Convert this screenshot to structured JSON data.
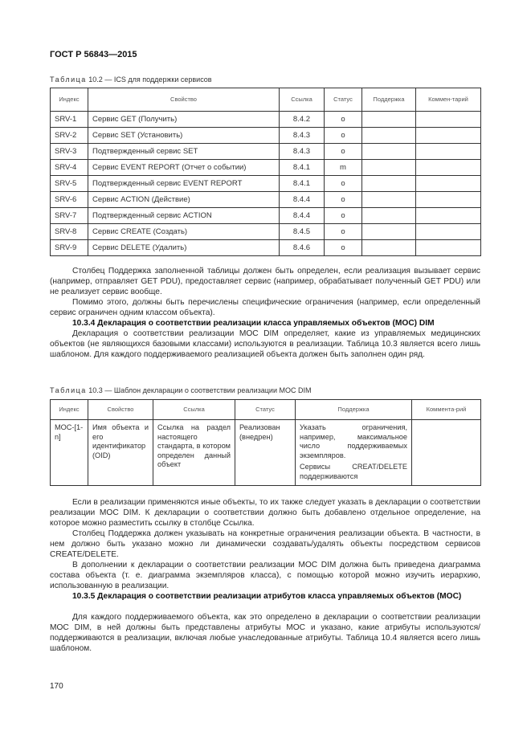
{
  "header": {
    "doc_id": "ГОСТ Р 56843—2015"
  },
  "table1": {
    "caption_prefix": "Таблица",
    "caption_rest": " 10.2 — ICS для поддержки сервисов",
    "columns": [
      "Индекс",
      "Свойство",
      "Ссылка",
      "Статус",
      "Поддержка",
      "Коммен-тарий"
    ],
    "rows": [
      [
        "SRV-1",
        "Сервис GET (Получить)",
        "8.4.2",
        "o",
        "",
        ""
      ],
      [
        "SRV-2",
        "Сервис SET (Установить)",
        "8.4.3",
        "o",
        "",
        ""
      ],
      [
        "SRV-3",
        "Подтвержденный сервис SET",
        "8.4.3",
        "o",
        "",
        ""
      ],
      [
        "SRV-4",
        "Сервис EVENT REPORT (Отчет о событии)",
        "8.4.1",
        "m",
        "",
        ""
      ],
      [
        "SRV-5",
        "Подтвержденный сервис EVENT REPORT",
        "8.4.1",
        "o",
        "",
        ""
      ],
      [
        "SRV-6",
        "Сервис ACTION (Действие)",
        "8.4.4",
        "o",
        "",
        ""
      ],
      [
        "SRV-7",
        "Подтвержденный сервис ACTION",
        "8.4.4",
        "o",
        "",
        ""
      ],
      [
        "SRV-8",
        "Сервис CREATE (Создать)",
        "8.4.5",
        "o",
        "",
        ""
      ],
      [
        "SRV-9",
        "Сервис DELETE (Удалить)",
        "8.4.6",
        "o",
        "",
        ""
      ]
    ]
  },
  "para1": "Столбец Поддержка заполненной таблицы должен быть определен, если реализация вызывает сервис (например, отправляет GET PDU), предоставляет сервис (например, обрабатывает полученный GET PDU) или не реализует сервис вообще.",
  "para2": "Помимо этого, должны быть перечислены специфические ограничения (например, если определенный сервис ограничен одним классом объекта).",
  "heading1": "10.3.4 Декларация о соответствии реализации класса управляемых объектов (MOC) DIM",
  "para3": "Декларация о соответствии реализации MOC DIM определяет, какие из управляемых медицинских объектов (не являющихся базовыми классами) используются в реализации. Таблица 10.3 является всего лишь шаблоном. Для каждого поддерживаемого реализацией объекта должен быть заполнен один ряд.",
  "table2": {
    "caption_prefix": "Таблица",
    "caption_rest": " 10.3 — Шаблон декларации о соответствии реализации MOC DIM",
    "columns": [
      "Индекс",
      "Свойство",
      "Ссылка",
      "Статус",
      "Поддержка",
      "Коммента-рий"
    ],
    "row": {
      "index": "MOC-[1-n]",
      "property": "Имя объекта и его идентификатор (OID)",
      "reference": "Ссылка на раздел настоящего стандарта, в котором определен данный объект",
      "status": "Реализован (внедрен)",
      "support_1": "Указать ограничения, например, максимальное число поддерживаемых экземпляров.",
      "support_2": "Сервисы CREAT/DELETE поддерживаются",
      "comment": ""
    }
  },
  "para4": "Если в реализации применяются иные объекты, то их также следует указать в декларации о соответствии реализации MOC DIM. К декларации о соответствии должно быть добавлено отдельное определение, на которое можно разместить ссылку в столбце Ссылка.",
  "para5": "Столбец Поддержка должен указывать на конкретные ограничения реализации объекта. В частности, в нем должно быть указано можно ли динамически создавать/удалять объекты посредством сервисов CREATE/DELETE.",
  "para6": "В дополнении к декларации о соответствии реализации MOC DIM должна быть приведена диаграмма состава объекта (т. е. диаграмма экземпляров класса), с помощью которой можно изучить иерархию, использованную в реализации.",
  "heading2": "10.3.5 Декларация о соответствии реализации атрибутов класса управляемых объектов (MOC)",
  "para7": "Для каждого поддерживаемого объекта, как это определено в декларации о соответствии реализации MOC DIM, в ней должны быть представлены атрибуты MOC и указано, какие атрибуты используются/поддерживаются в реализации, включая любые унаследованные атрибуты. Таблица 10.4 является всего лишь шаблоном.",
  "page_number": "170"
}
